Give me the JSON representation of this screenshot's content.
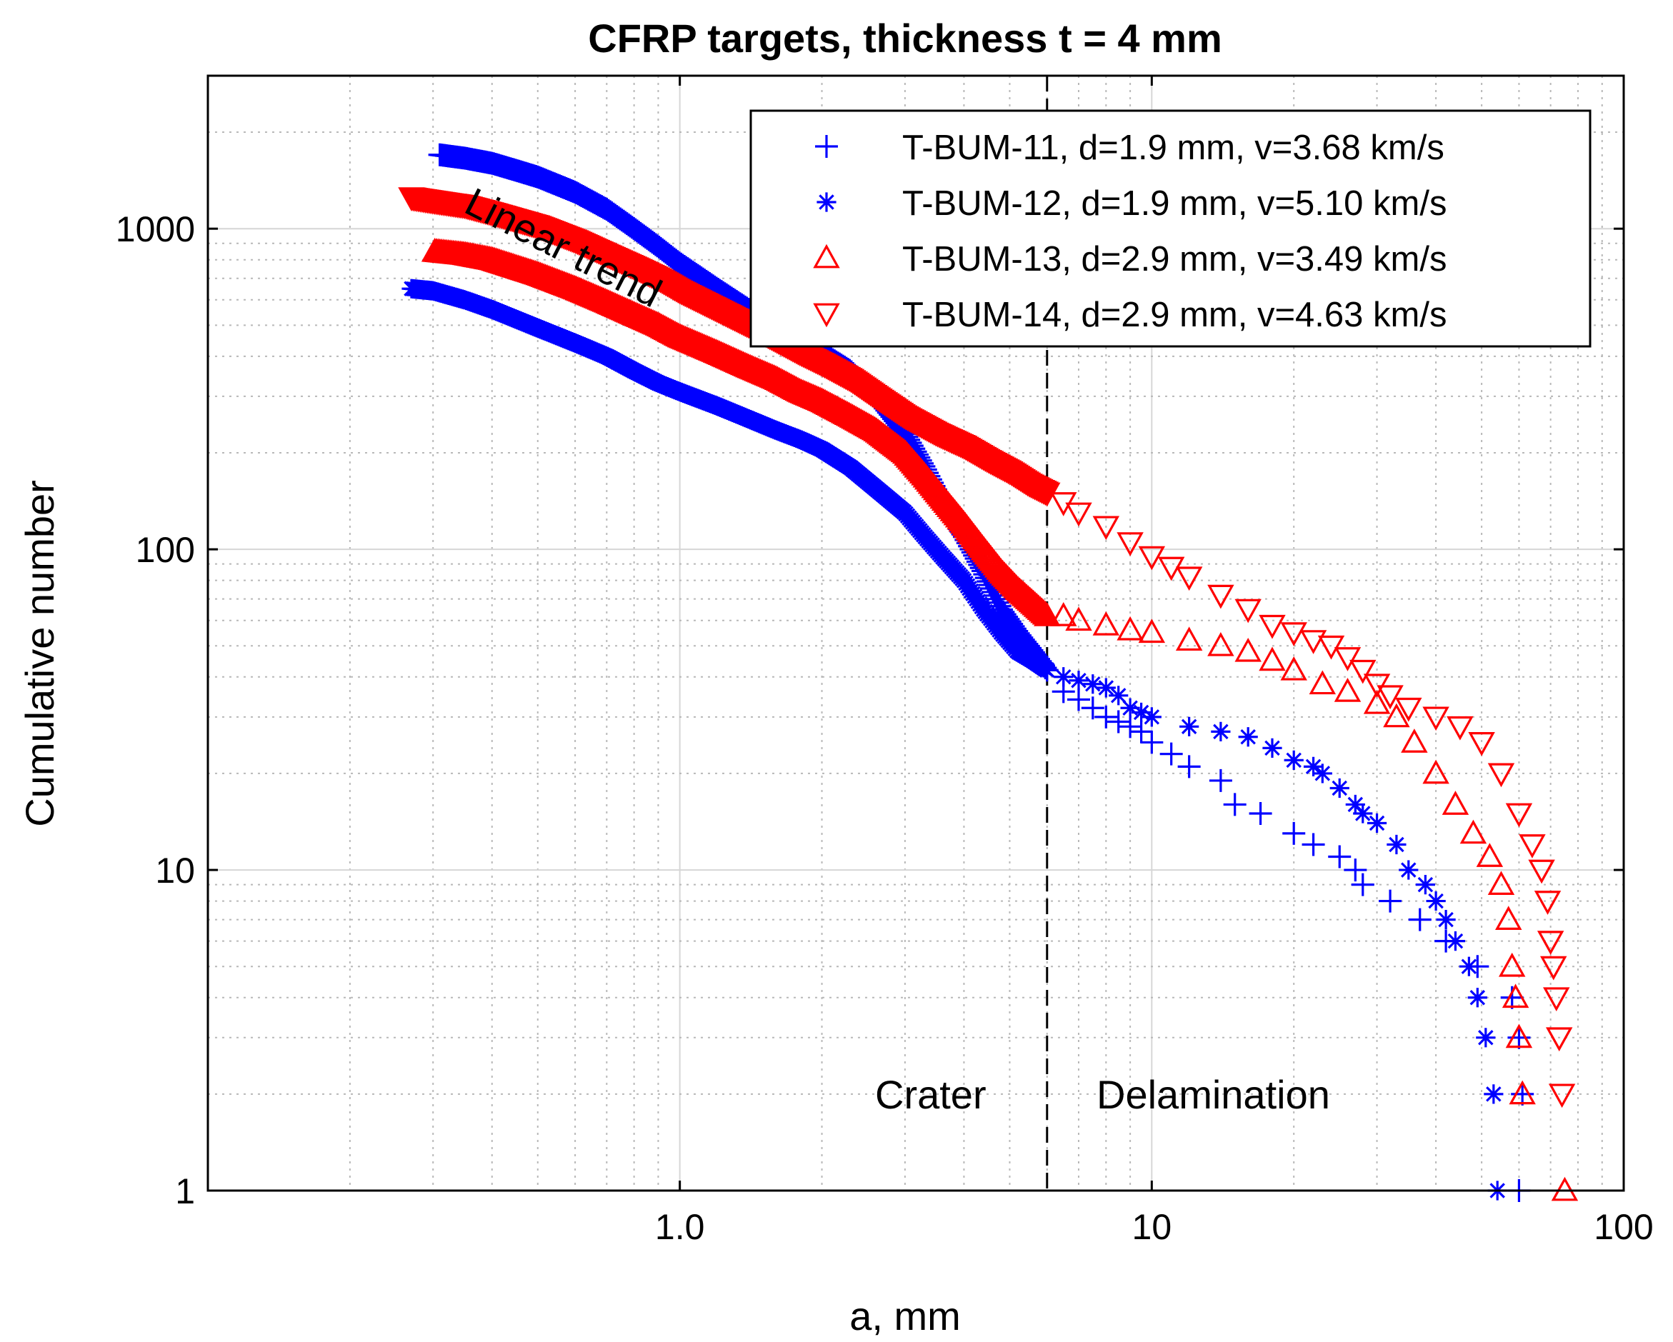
{
  "chart_data": {
    "type": "scatter",
    "title": "CFRP targets, thickness t = 4 mm",
    "xlabel": "a, mm",
    "ylabel": "Cumulative number",
    "xscale": "log",
    "yscale": "log",
    "xlim": [
      0.1,
      100
    ],
    "ylim": [
      1,
      3000
    ],
    "xticks": [
      {
        "value": 1,
        "label": "1.0"
      },
      {
        "value": 10,
        "label": "10"
      },
      {
        "value": 100,
        "label": "100"
      }
    ],
    "yticks": [
      {
        "value": 1,
        "label": "1"
      },
      {
        "value": 10,
        "label": "10"
      },
      {
        "value": 100,
        "label": "100"
      },
      {
        "value": 1000,
        "label": "1000"
      }
    ],
    "grid": true,
    "legend_position": "top-right",
    "annotations": [
      {
        "text": "Linear trend",
        "x": 0.55,
        "y": 800,
        "rotation": 27
      },
      {
        "text": "Crater",
        "x": 3.4,
        "y": 2
      },
      {
        "text": "Delamination",
        "x": 13.5,
        "y": 2
      }
    ],
    "vline": {
      "x": 6.0,
      "style": "dashed"
    },
    "series": [
      {
        "name": "T-BUM-11, d=1.9 mm, v=3.68 km/s",
        "marker": "plus",
        "color": "#0000ff",
        "points": [
          [
            0.31,
            1700
          ],
          [
            0.35,
            1660
          ],
          [
            0.4,
            1600
          ],
          [
            0.45,
            1520
          ],
          [
            0.5,
            1450
          ],
          [
            0.6,
            1300
          ],
          [
            0.7,
            1150
          ],
          [
            0.8,
            1000
          ],
          [
            0.9,
            880
          ],
          [
            1.0,
            780
          ],
          [
            1.2,
            650
          ],
          [
            1.4,
            560
          ],
          [
            1.6,
            500
          ],
          [
            1.8,
            450
          ],
          [
            2.0,
            410
          ],
          [
            2.3,
            360
          ],
          [
            2.6,
            300
          ],
          [
            3.0,
            230
          ],
          [
            3.3,
            180
          ],
          [
            3.6,
            140
          ],
          [
            4.0,
            110
          ],
          [
            4.4,
            85
          ],
          [
            4.8,
            65
          ],
          [
            5.2,
            55
          ],
          [
            5.6,
            48
          ],
          [
            6.0,
            42
          ],
          [
            6.5,
            36
          ],
          [
            7.0,
            34
          ],
          [
            7.5,
            32
          ],
          [
            8.0,
            30
          ],
          [
            8.5,
            29
          ],
          [
            9.0,
            28
          ],
          [
            9.5,
            27
          ],
          [
            10.0,
            25
          ],
          [
            11.0,
            23
          ],
          [
            12.0,
            21
          ],
          [
            14.0,
            19
          ],
          [
            15.0,
            16
          ],
          [
            17.0,
            15
          ],
          [
            20.0,
            13
          ],
          [
            22.0,
            12
          ],
          [
            25.0,
            11
          ],
          [
            27.0,
            10
          ],
          [
            28.0,
            9
          ],
          [
            32.0,
            8
          ],
          [
            37.0,
            7
          ],
          [
            42.0,
            6
          ],
          [
            49.0,
            5
          ],
          [
            58.0,
            4
          ],
          [
            60.0,
            3
          ],
          [
            61.0,
            2
          ],
          [
            60.0,
            1
          ]
        ]
      },
      {
        "name": "T-BUM-12, d=1.9 mm, v=5.10 km/s",
        "marker": "asterisk",
        "color": "#0000ff",
        "points": [
          [
            0.27,
            650
          ],
          [
            0.3,
            640
          ],
          [
            0.35,
            600
          ],
          [
            0.4,
            560
          ],
          [
            0.5,
            490
          ],
          [
            0.6,
            440
          ],
          [
            0.7,
            400
          ],
          [
            0.8,
            360
          ],
          [
            0.9,
            330
          ],
          [
            1.0,
            310
          ],
          [
            1.2,
            280
          ],
          [
            1.4,
            255
          ],
          [
            1.6,
            235
          ],
          [
            1.8,
            220
          ],
          [
            2.0,
            205
          ],
          [
            2.3,
            180
          ],
          [
            2.6,
            155
          ],
          [
            3.0,
            130
          ],
          [
            3.3,
            110
          ],
          [
            3.6,
            95
          ],
          [
            4.0,
            80
          ],
          [
            4.4,
            65
          ],
          [
            4.8,
            55
          ],
          [
            5.2,
            48
          ],
          [
            5.6,
            45
          ],
          [
            6.0,
            42
          ],
          [
            6.5,
            40
          ],
          [
            7.0,
            39
          ],
          [
            7.5,
            38
          ],
          [
            8.0,
            37
          ],
          [
            8.5,
            35
          ],
          [
            9.0,
            32
          ],
          [
            9.5,
            31
          ],
          [
            10.0,
            30
          ],
          [
            12.0,
            28
          ],
          [
            14.0,
            27
          ],
          [
            16.0,
            26
          ],
          [
            18.0,
            24
          ],
          [
            20.0,
            22
          ],
          [
            22.0,
            21
          ],
          [
            23.0,
            20
          ],
          [
            25.0,
            18
          ],
          [
            27.0,
            16
          ],
          [
            28.0,
            15
          ],
          [
            30.0,
            14
          ],
          [
            33.0,
            12
          ],
          [
            35.0,
            10
          ],
          [
            38.0,
            9
          ],
          [
            40.0,
            8
          ],
          [
            42.0,
            7
          ],
          [
            44.0,
            6
          ],
          [
            47.0,
            5
          ],
          [
            49.0,
            4
          ],
          [
            51.0,
            3
          ],
          [
            53.0,
            2
          ],
          [
            54.0,
            1
          ]
        ]
      },
      {
        "name": "T-BUM-13, d=2.9 mm, v=3.49 km/s",
        "marker": "triangle-up",
        "color": "#ff0000",
        "points": [
          [
            0.3,
            850
          ],
          [
            0.35,
            830
          ],
          [
            0.4,
            800
          ],
          [
            0.5,
            720
          ],
          [
            0.6,
            650
          ],
          [
            0.7,
            590
          ],
          [
            0.8,
            540
          ],
          [
            0.9,
            500
          ],
          [
            1.0,
            460
          ],
          [
            1.2,
            410
          ],
          [
            1.4,
            370
          ],
          [
            1.6,
            340
          ],
          [
            1.8,
            310
          ],
          [
            2.0,
            290
          ],
          [
            2.3,
            260
          ],
          [
            2.6,
            235
          ],
          [
            3.0,
            200
          ],
          [
            3.3,
            170
          ],
          [
            3.6,
            145
          ],
          [
            4.0,
            120
          ],
          [
            4.4,
            100
          ],
          [
            4.8,
            85
          ],
          [
            5.2,
            75
          ],
          [
            5.6,
            68
          ],
          [
            6.0,
            62
          ],
          [
            6.5,
            62
          ],
          [
            7.0,
            60
          ],
          [
            8.0,
            58
          ],
          [
            9.0,
            56
          ],
          [
            10.0,
            55
          ],
          [
            12.0,
            52
          ],
          [
            14.0,
            50
          ],
          [
            16.0,
            48
          ],
          [
            18.0,
            45
          ],
          [
            20.0,
            42
          ],
          [
            23.0,
            38
          ],
          [
            26.0,
            36
          ],
          [
            30.0,
            33
          ],
          [
            33.0,
            30
          ],
          [
            36.0,
            25
          ],
          [
            40.0,
            20
          ],
          [
            44.0,
            16
          ],
          [
            48.0,
            13
          ],
          [
            52.0,
            11
          ],
          [
            55.0,
            9
          ],
          [
            57.0,
            7
          ],
          [
            58.0,
            5
          ],
          [
            59.0,
            4
          ],
          [
            60.0,
            3
          ],
          [
            61.0,
            2
          ],
          [
            75.0,
            1
          ]
        ]
      },
      {
        "name": "T-BUM-14, d=2.9 mm, v=4.63 km/s",
        "marker": "triangle-down",
        "color": "#ff0000",
        "points": [
          [
            0.27,
            1250
          ],
          [
            0.3,
            1220
          ],
          [
            0.35,
            1180
          ],
          [
            0.4,
            1120
          ],
          [
            0.5,
            1020
          ],
          [
            0.6,
            920
          ],
          [
            0.7,
            830
          ],
          [
            0.8,
            760
          ],
          [
            0.9,
            700
          ],
          [
            1.0,
            640
          ],
          [
            1.2,
            560
          ],
          [
            1.4,
            500
          ],
          [
            1.6,
            450
          ],
          [
            1.8,
            410
          ],
          [
            2.0,
            380
          ],
          [
            2.3,
            340
          ],
          [
            2.6,
            300
          ],
          [
            3.0,
            260
          ],
          [
            3.5,
            230
          ],
          [
            4.0,
            210
          ],
          [
            4.5,
            190
          ],
          [
            5.0,
            175
          ],
          [
            5.5,
            160
          ],
          [
            6.0,
            150
          ],
          [
            6.5,
            140
          ],
          [
            7.0,
            130
          ],
          [
            8.0,
            118
          ],
          [
            9.0,
            105
          ],
          [
            10.0,
            95
          ],
          [
            11.0,
            88
          ],
          [
            12.0,
            82
          ],
          [
            14.0,
            72
          ],
          [
            16.0,
            65
          ],
          [
            18.0,
            58
          ],
          [
            20.0,
            55
          ],
          [
            22.0,
            52
          ],
          [
            24.0,
            50
          ],
          [
            26.0,
            46
          ],
          [
            28.0,
            42
          ],
          [
            30.0,
            38
          ],
          [
            32.0,
            35
          ],
          [
            35.0,
            32
          ],
          [
            40.0,
            30
          ],
          [
            45.0,
            28
          ],
          [
            50.0,
            25
          ],
          [
            55.0,
            20
          ],
          [
            60.0,
            15
          ],
          [
            64.0,
            12
          ],
          [
            67.0,
            10
          ],
          [
            69.0,
            8
          ],
          [
            70.0,
            6
          ],
          [
            71.0,
            5
          ],
          [
            72.0,
            4
          ],
          [
            73.0,
            3
          ],
          [
            74.0,
            2
          ]
        ]
      }
    ]
  }
}
